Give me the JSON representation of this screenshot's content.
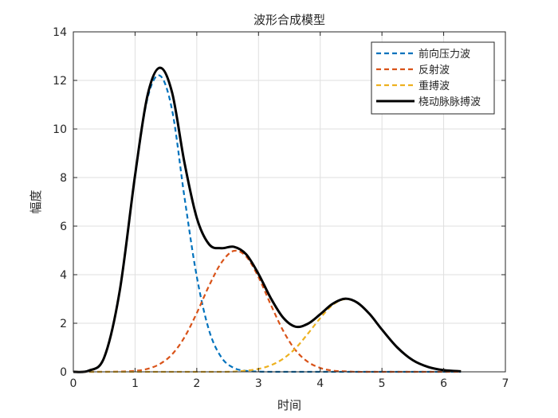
{
  "chart_data": {
    "type": "line",
    "title": "波形合成模型",
    "xlabel": "时间",
    "ylabel": "幅度",
    "xlim": [
      0,
      7
    ],
    "ylim": [
      0,
      14
    ],
    "xticks": [
      0,
      1,
      2,
      3,
      4,
      5,
      6,
      7
    ],
    "yticks": [
      0,
      2,
      4,
      6,
      8,
      10,
      12,
      14
    ],
    "grid": true,
    "legend_position": "top-right",
    "x": [
      0,
      0.25,
      0.5,
      0.75,
      1.0,
      1.2,
      1.4,
      1.6,
      1.8,
      2.0,
      2.2,
      2.4,
      2.6,
      2.8,
      3.0,
      3.2,
      3.4,
      3.6,
      3.8,
      4.0,
      4.2,
      4.4,
      4.6,
      4.8,
      5.0,
      5.25,
      5.5,
      5.75,
      6.0,
      6.28
    ],
    "series": [
      {
        "name": "前向压力波",
        "color": "#0072BD",
        "style": "dashed",
        "values": [
          0.0,
          0.05,
          0.59,
          3.3,
          8.05,
          11.24,
          12.2,
          10.78,
          7.2,
          3.92,
          1.7,
          0.59,
          0.16,
          0.04,
          0.01,
          0,
          0,
          0,
          0,
          0,
          0,
          0,
          0,
          0,
          0,
          0,
          0,
          0,
          0,
          0
        ]
      },
      {
        "name": "反射波",
        "color": "#D95319",
        "style": "dashed",
        "values": [
          0,
          0,
          0,
          0.01,
          0.04,
          0.12,
          0.32,
          0.72,
          1.42,
          2.42,
          3.55,
          4.5,
          4.98,
          4.75,
          3.9,
          2.76,
          1.69,
          0.89,
          0.41,
          0.16,
          0.05,
          0.02,
          0,
          0,
          0,
          0,
          0,
          0,
          0,
          0
        ]
      },
      {
        "name": "重搏波",
        "color": "#EDB120",
        "style": "dashed",
        "values": [
          0,
          0,
          0,
          0,
          0,
          0,
          0,
          0,
          0,
          0,
          0,
          0,
          0.01,
          0.05,
          0.12,
          0.27,
          0.54,
          0.97,
          1.57,
          2.21,
          2.75,
          2.99,
          2.85,
          2.38,
          1.74,
          1.0,
          0.48,
          0.2,
          0.07,
          0.02
        ]
      },
      {
        "name": "桡动脉脉搏波",
        "color": "#000000",
        "style": "solid",
        "values": [
          0.0,
          0.05,
          0.59,
          3.31,
          8.09,
          11.36,
          12.52,
          11.5,
          8.62,
          6.34,
          5.25,
          5.09,
          5.15,
          4.84,
          4.03,
          3.03,
          2.23,
          1.86,
          1.98,
          2.37,
          2.8,
          3.01,
          2.85,
          2.38,
          1.74,
          1.0,
          0.48,
          0.2,
          0.07,
          0.02
        ]
      }
    ]
  }
}
